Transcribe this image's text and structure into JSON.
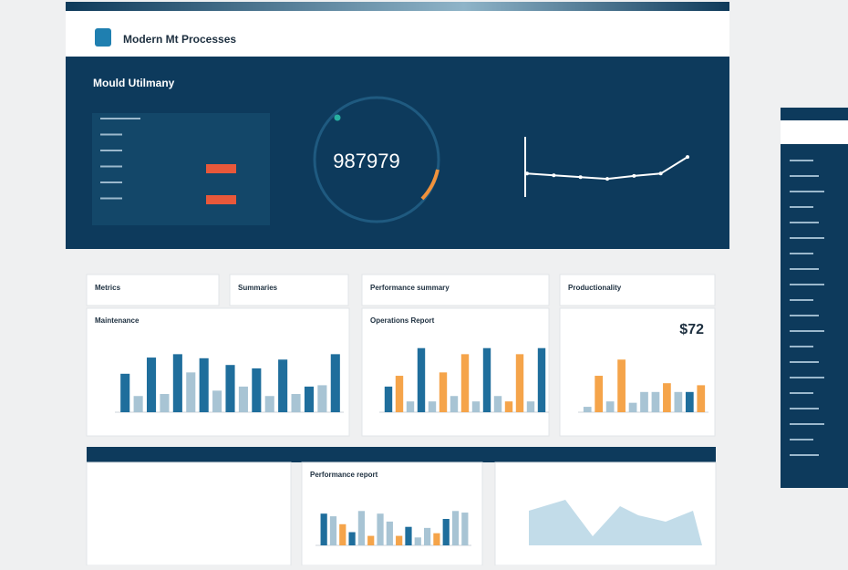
{
  "header": {
    "title": "Modern Mt Processes"
  },
  "hero": {
    "title": "Mould Utilmany",
    "gauge_value": "987979",
    "line": {
      "values": [
        38,
        35,
        32,
        29,
        34,
        38,
        66
      ],
      "ylim": [
        0,
        100
      ],
      "color": "#ffffff"
    }
  },
  "cards": [
    {
      "title": "Metrics"
    },
    {
      "title": "Summaries"
    },
    {
      "title": "Performance summary"
    },
    {
      "title": "Productionality"
    }
  ],
  "charts": [
    {
      "title": "Maintenance",
      "ylim": [
        0,
        100
      ],
      "values": [
        57,
        24,
        81,
        27,
        86,
        59,
        80,
        32,
        70,
        38,
        65,
        24,
        78,
        27,
        38,
        40,
        86
      ],
      "colors": [
        "#1f6e9c",
        "#a8c4d4",
        "#1f6e9c",
        "#a8c4d4",
        "#1f6e9c",
        "#a8c4d4",
        "#1f6e9c",
        "#a8c4d4",
        "#1f6e9c",
        "#a8c4d4",
        "#1f6e9c",
        "#a8c4d4",
        "#1f6e9c",
        "#a8c4d4",
        "#1f6e9c",
        "#a8c4d4",
        "#1f6e9c"
      ]
    },
    {
      "title": "Operations Report",
      "ylim": [
        0,
        100
      ],
      "values": [
        38,
        54,
        16,
        95,
        16,
        59,
        24,
        86,
        16,
        95,
        24,
        16,
        86,
        16,
        95
      ],
      "colors": [
        "#1f6e9c",
        "#f5a44a",
        "#a8c4d4",
        "#1f6e9c",
        "#a8c4d4",
        "#f5a44a",
        "#a8c4d4",
        "#f5a44a",
        "#a8c4d4",
        "#1f6e9c",
        "#a8c4d4",
        "#f5a44a",
        "#f5a44a",
        "#a8c4d4",
        "#1f6e9c"
      ]
    },
    {
      "title": "$72",
      "ylim": [
        0,
        100
      ],
      "values": [
        8,
        54,
        16,
        78,
        14,
        30,
        30,
        43,
        30,
        30,
        40
      ],
      "colors": [
        "#a8c4d4",
        "#f5a44a",
        "#a8c4d4",
        "#f5a44a",
        "#a8c4d4",
        "#a8c4d4",
        "#a8c4d4",
        "#f5a44a",
        "#a8c4d4",
        "#1f6e9c",
        "#f5a44a"
      ]
    },
    {
      "title": "Performance report",
      "ylim": [
        0,
        100
      ],
      "values": [
        60,
        55,
        40,
        25,
        65,
        18,
        60,
        45,
        18,
        35,
        15,
        33,
        23,
        50,
        65,
        62
      ],
      "colors": [
        "#1f6e9c",
        "#a8c4d4",
        "#f5a44a",
        "#1f6e9c",
        "#a8c4d4",
        "#f5a44a",
        "#a8c4d4",
        "#a8c4d4",
        "#f5a44a",
        "#1f6e9c",
        "#a8c4d4",
        "#a8c4d4",
        "#f5a44a",
        "#1f6e9c",
        "#a8c4d4",
        "#a8c4d4"
      ]
    }
  ]
}
